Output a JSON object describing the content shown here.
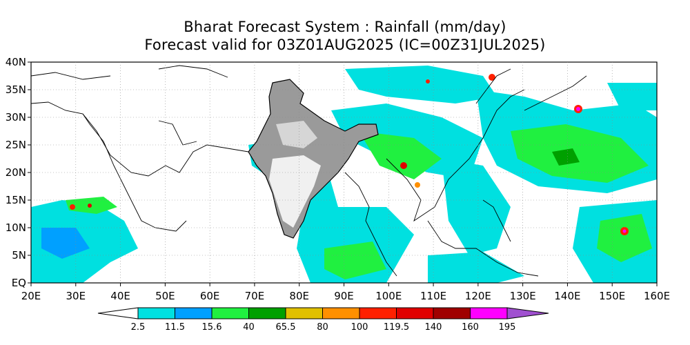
{
  "title": {
    "line1": "Bharat Forecast System : Rainfall (mm/day)",
    "line2": "Forecast valid for 03Z01AUG2025 (IC=00Z31JUL2025)"
  },
  "map": {
    "lon_range": [
      20,
      160
    ],
    "lat_range": [
      0,
      40
    ],
    "lon_ticks": [
      "20E",
      "30E",
      "40E",
      "50E",
      "60E",
      "70E",
      "80E",
      "90E",
      "100E",
      "110E",
      "120E",
      "130E",
      "140E",
      "150E",
      "160E"
    ],
    "lat_ticks": [
      "EQ",
      "5N",
      "10N",
      "15N",
      "20N",
      "25N",
      "30N",
      "35N",
      "40N"
    ]
  },
  "colorbar": {
    "labels": [
      "2.5",
      "11.5",
      "15.6",
      "40",
      "65.5",
      "80",
      "100",
      "119.5",
      "140",
      "160",
      "195"
    ],
    "colors": [
      "#00e0e0",
      "#00a0ff",
      "#20f040",
      "#00a000",
      "#e0c000",
      "#ff9000",
      "#ff2000",
      "#e00000",
      "#a00000",
      "#ff00ff",
      "#a050d0"
    ]
  }
}
